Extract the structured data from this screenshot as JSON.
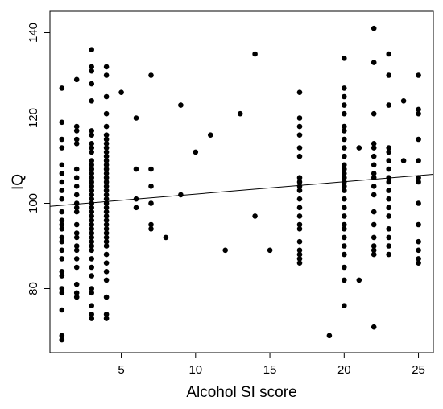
{
  "chart_data": {
    "type": "scatter",
    "title": "",
    "xlabel": "Alcohol SI score",
    "ylabel": "IQ",
    "xlim": [
      0.2,
      26
    ],
    "ylim": [
      65,
      145
    ],
    "xticks": [
      5,
      10,
      15,
      20,
      25
    ],
    "yticks": [
      80,
      100,
      120,
      140
    ],
    "grid": false,
    "legend": "none",
    "colors": {
      "points": "#000000",
      "line": "#000000",
      "axes": "#000000",
      "background": "#ffffff"
    },
    "regression_line": {
      "x": [
        0.2,
        26
      ],
      "y": [
        99.3,
        106.8
      ]
    },
    "points": [
      [
        1,
        127
      ],
      [
        1,
        119
      ],
      [
        1,
        115
      ],
      [
        1,
        113
      ],
      [
        1,
        109
      ],
      [
        1,
        107
      ],
      [
        1,
        105
      ],
      [
        1,
        103
      ],
      [
        1,
        101
      ],
      [
        1,
        98
      ],
      [
        1,
        96
      ],
      [
        1,
        95
      ],
      [
        1,
        94
      ],
      [
        1,
        92
      ],
      [
        1,
        91
      ],
      [
        1,
        89
      ],
      [
        1,
        87
      ],
      [
        1,
        84
      ],
      [
        1,
        83
      ],
      [
        1,
        80
      ],
      [
        1,
        79
      ],
      [
        1,
        75
      ],
      [
        1,
        69
      ],
      [
        1,
        68
      ],
      [
        2,
        129
      ],
      [
        2,
        118
      ],
      [
        2,
        117
      ],
      [
        2,
        115
      ],
      [
        2,
        114
      ],
      [
        2,
        108
      ],
      [
        2,
        106
      ],
      [
        2,
        104
      ],
      [
        2,
        102
      ],
      [
        2,
        100
      ],
      [
        2,
        99
      ],
      [
        2,
        98
      ],
      [
        2,
        95
      ],
      [
        2,
        93
      ],
      [
        2,
        92
      ],
      [
        2,
        90
      ],
      [
        2,
        89
      ],
      [
        2,
        87
      ],
      [
        2,
        85
      ],
      [
        2,
        81
      ],
      [
        2,
        79
      ],
      [
        2,
        78
      ],
      [
        3,
        136
      ],
      [
        3,
        132
      ],
      [
        3,
        131
      ],
      [
        3,
        128
      ],
      [
        3,
        124
      ],
      [
        3,
        117
      ],
      [
        3,
        116
      ],
      [
        3,
        114
      ],
      [
        3,
        113
      ],
      [
        3,
        112
      ],
      [
        3,
        110
      ],
      [
        3,
        109
      ],
      [
        3,
        108
      ],
      [
        3,
        107
      ],
      [
        3,
        106
      ],
      [
        3,
        105
      ],
      [
        3,
        104
      ],
      [
        3,
        103
      ],
      [
        3,
        102
      ],
      [
        3,
        101
      ],
      [
        3,
        100
      ],
      [
        3,
        99
      ],
      [
        3,
        98
      ],
      [
        3,
        97
      ],
      [
        3,
        96
      ],
      [
        3,
        95
      ],
      [
        3,
        94
      ],
      [
        3,
        93
      ],
      [
        3,
        92
      ],
      [
        3,
        91
      ],
      [
        3,
        90
      ],
      [
        3,
        89
      ],
      [
        3,
        87
      ],
      [
        3,
        85
      ],
      [
        3,
        83
      ],
      [
        3,
        80
      ],
      [
        3,
        79
      ],
      [
        3,
        76
      ],
      [
        3,
        74
      ],
      [
        3,
        73
      ],
      [
        4,
        132
      ],
      [
        4,
        130
      ],
      [
        4,
        125
      ],
      [
        4,
        121
      ],
      [
        4,
        118
      ],
      [
        4,
        116
      ],
      [
        4,
        115
      ],
      [
        4,
        114
      ],
      [
        4,
        113
      ],
      [
        4,
        112
      ],
      [
        4,
        111
      ],
      [
        4,
        110
      ],
      [
        4,
        109
      ],
      [
        4,
        108
      ],
      [
        4,
        107
      ],
      [
        4,
        106
      ],
      [
        4,
        105
      ],
      [
        4,
        104
      ],
      [
        4,
        103
      ],
      [
        4,
        102
      ],
      [
        4,
        101
      ],
      [
        4,
        100
      ],
      [
        4,
        99
      ],
      [
        4,
        98
      ],
      [
        4,
        97
      ],
      [
        4,
        96
      ],
      [
        4,
        95
      ],
      [
        4,
        94
      ],
      [
        4,
        93
      ],
      [
        4,
        92
      ],
      [
        4,
        91
      ],
      [
        4,
        90
      ],
      [
        4,
        88
      ],
      [
        4,
        86
      ],
      [
        4,
        84
      ],
      [
        4,
        82
      ],
      [
        4,
        78
      ],
      [
        4,
        74
      ],
      [
        4,
        73
      ],
      [
        5,
        126
      ],
      [
        6,
        120
      ],
      [
        6,
        108
      ],
      [
        6,
        101
      ],
      [
        6,
        99
      ],
      [
        7,
        130
      ],
      [
        7,
        108
      ],
      [
        7,
        104
      ],
      [
        7,
        100
      ],
      [
        7,
        95
      ],
      [
        7,
        94
      ],
      [
        8,
        92
      ],
      [
        9,
        123
      ],
      [
        9,
        102
      ],
      [
        10,
        112
      ],
      [
        11,
        116
      ],
      [
        12,
        89
      ],
      [
        13,
        121
      ],
      [
        14,
        135
      ],
      [
        14,
        97
      ],
      [
        15,
        89
      ],
      [
        17,
        126
      ],
      [
        17,
        120
      ],
      [
        17,
        118
      ],
      [
        17,
        116
      ],
      [
        17,
        113
      ],
      [
        17,
        111
      ],
      [
        17,
        106
      ],
      [
        17,
        105
      ],
      [
        17,
        104
      ],
      [
        17,
        103
      ],
      [
        17,
        101
      ],
      [
        17,
        99
      ],
      [
        17,
        97
      ],
      [
        17,
        95
      ],
      [
        17,
        94
      ],
      [
        17,
        91
      ],
      [
        17,
        89
      ],
      [
        17,
        88
      ],
      [
        17,
        87
      ],
      [
        17,
        86
      ],
      [
        19,
        69
      ],
      [
        20,
        134
      ],
      [
        20,
        127
      ],
      [
        20,
        125
      ],
      [
        20,
        123
      ],
      [
        20,
        121
      ],
      [
        20,
        118
      ],
      [
        20,
        117
      ],
      [
        20,
        115
      ],
      [
        20,
        113
      ],
      [
        20,
        111
      ],
      [
        20,
        109
      ],
      [
        20,
        108
      ],
      [
        20,
        107
      ],
      [
        20,
        106
      ],
      [
        20,
        105
      ],
      [
        20,
        104
      ],
      [
        20,
        103
      ],
      [
        20,
        101
      ],
      [
        20,
        99
      ],
      [
        20,
        97
      ],
      [
        20,
        95
      ],
      [
        20,
        94
      ],
      [
        20,
        92
      ],
      [
        20,
        90
      ],
      [
        20,
        88
      ],
      [
        20,
        85
      ],
      [
        20,
        82
      ],
      [
        20,
        76
      ],
      [
        21,
        113
      ],
      [
        21,
        82
      ],
      [
        22,
        141
      ],
      [
        22,
        133
      ],
      [
        22,
        121
      ],
      [
        22,
        114
      ],
      [
        22,
        113
      ],
      [
        22,
        111
      ],
      [
        22,
        109
      ],
      [
        22,
        107
      ],
      [
        22,
        106
      ],
      [
        22,
        104
      ],
      [
        22,
        102
      ],
      [
        22,
        98
      ],
      [
        22,
        95
      ],
      [
        22,
        92
      ],
      [
        22,
        90
      ],
      [
        22,
        89
      ],
      [
        22,
        88
      ],
      [
        22,
        71
      ],
      [
        23,
        135
      ],
      [
        23,
        130
      ],
      [
        23,
        123
      ],
      [
        23,
        113
      ],
      [
        23,
        112
      ],
      [
        23,
        110
      ],
      [
        23,
        108
      ],
      [
        23,
        106
      ],
      [
        23,
        105
      ],
      [
        23,
        103
      ],
      [
        23,
        101
      ],
      [
        23,
        99
      ],
      [
        23,
        97
      ],
      [
        23,
        94
      ],
      [
        23,
        92
      ],
      [
        23,
        90
      ],
      [
        23,
        88
      ],
      [
        24,
        124
      ],
      [
        24,
        110
      ],
      [
        25,
        130
      ],
      [
        25,
        122
      ],
      [
        25,
        121
      ],
      [
        25,
        115
      ],
      [
        25,
        110
      ],
      [
        25,
        106
      ],
      [
        25,
        105
      ],
      [
        25,
        100
      ],
      [
        25,
        95
      ],
      [
        25,
        91
      ],
      [
        25,
        89
      ],
      [
        25,
        87
      ],
      [
        25,
        86
      ]
    ]
  }
}
